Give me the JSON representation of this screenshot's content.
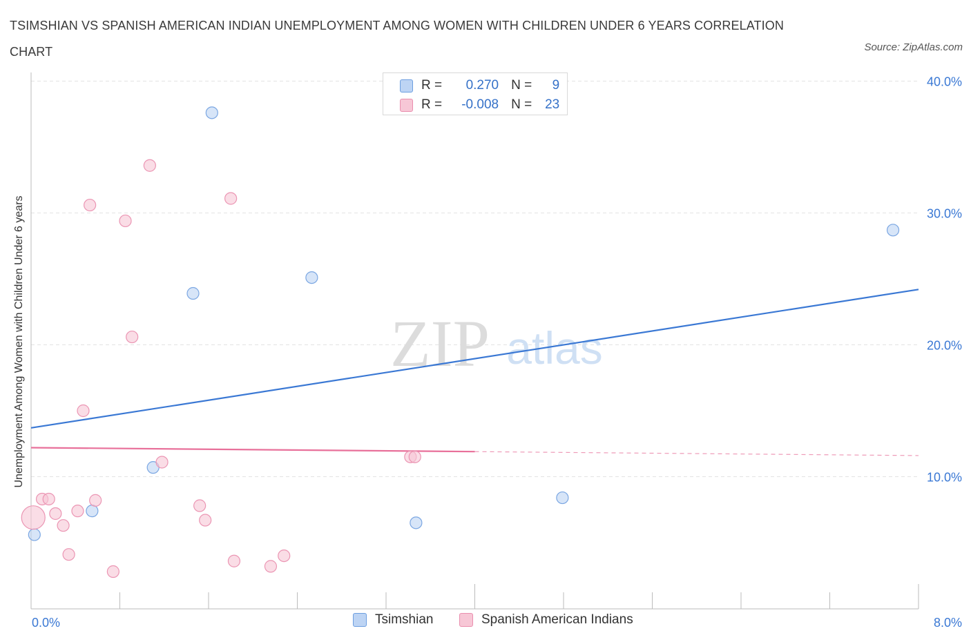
{
  "title": "TSIMSHIAN VS SPANISH AMERICAN INDIAN UNEMPLOYMENT AMONG WOMEN WITH CHILDREN UNDER 6 YEARS CORRELATION CHART",
  "source": "Source: ZipAtlas.com",
  "watermark": {
    "zip": "ZIP",
    "atlas": "atlas"
  },
  "colors": {
    "blue": "#3a78d4",
    "blue_fill": "#bdd4f4",
    "pink": "#e8709a",
    "pink_fill": "#f7c7d6",
    "axis_label": "#3a78d4",
    "grid": "#e3e3e3"
  },
  "legend": {
    "rows": [
      {
        "name": "Tsimshian",
        "r_label": "R =",
        "r_value": "0.270",
        "n_label": "N =",
        "n_value": "9"
      },
      {
        "name": "Spanish American Indians",
        "r_label": "R =",
        "r_value": "-0.008",
        "n_label": "N =",
        "n_value": "23"
      }
    ]
  },
  "chart_data": {
    "type": "scatter",
    "title": "TSIMSHIAN VS SPANISH AMERICAN INDIAN UNEMPLOYMENT AMONG WOMEN WITH CHILDREN UNDER 6 YEARS CORRELATION CHART",
    "xlabel": "",
    "ylabel": "Unemployment Among Women with Children Under 6 years",
    "xlim": [
      0,
      8
    ],
    "ylim": [
      0,
      40
    ],
    "x_tick_labels": [
      "0.0%",
      "8.0%"
    ],
    "y_ticks": [
      10,
      20,
      30,
      40
    ],
    "y_tick_labels": [
      "10.0%",
      "20.0%",
      "30.0%",
      "40.0%"
    ],
    "legend_position": "top-center",
    "series": [
      {
        "name": "Tsimshian",
        "color": "#3a78d4",
        "points": [
          {
            "x": 0.03,
            "y": 5.6
          },
          {
            "x": 0.55,
            "y": 7.4
          },
          {
            "x": 1.1,
            "y": 10.7
          },
          {
            "x": 1.46,
            "y": 23.9
          },
          {
            "x": 1.63,
            "y": 37.6
          },
          {
            "x": 2.53,
            "y": 25.1
          },
          {
            "x": 3.47,
            "y": 6.5
          },
          {
            "x": 4.79,
            "y": 8.4
          },
          {
            "x": 7.77,
            "y": 28.7
          }
        ],
        "trend": {
          "x_start": 0,
          "y_start": 13.7,
          "x_end": 8,
          "y_end": 24.2,
          "x_solid_end": 8
        }
      },
      {
        "name": "Spanish American Indians",
        "color": "#e8709a",
        "points": [
          {
            "x": 0.02,
            "y": 6.9,
            "size": "large"
          },
          {
            "x": 0.1,
            "y": 8.3
          },
          {
            "x": 0.16,
            "y": 8.3
          },
          {
            "x": 0.22,
            "y": 7.2
          },
          {
            "x": 0.29,
            "y": 6.3
          },
          {
            "x": 0.34,
            "y": 4.1
          },
          {
            "x": 0.42,
            "y": 7.4
          },
          {
            "x": 0.47,
            "y": 15.0
          },
          {
            "x": 0.53,
            "y": 30.6
          },
          {
            "x": 0.58,
            "y": 8.2
          },
          {
            "x": 0.74,
            "y": 2.8
          },
          {
            "x": 0.85,
            "y": 29.4
          },
          {
            "x": 0.91,
            "y": 20.6
          },
          {
            "x": 1.07,
            "y": 33.6
          },
          {
            "x": 1.18,
            "y": 11.1
          },
          {
            "x": 1.52,
            "y": 7.8
          },
          {
            "x": 1.57,
            "y": 6.7
          },
          {
            "x": 1.8,
            "y": 31.1
          },
          {
            "x": 1.83,
            "y": 3.6
          },
          {
            "x": 2.16,
            "y": 3.2
          },
          {
            "x": 2.28,
            "y": 4.0
          },
          {
            "x": 3.42,
            "y": 11.5
          },
          {
            "x": 3.46,
            "y": 11.5
          }
        ],
        "trend": {
          "x_start": 0,
          "y_start": 12.2,
          "x_end": 8,
          "y_end": 11.6,
          "x_solid_end": 4
        }
      }
    ]
  }
}
